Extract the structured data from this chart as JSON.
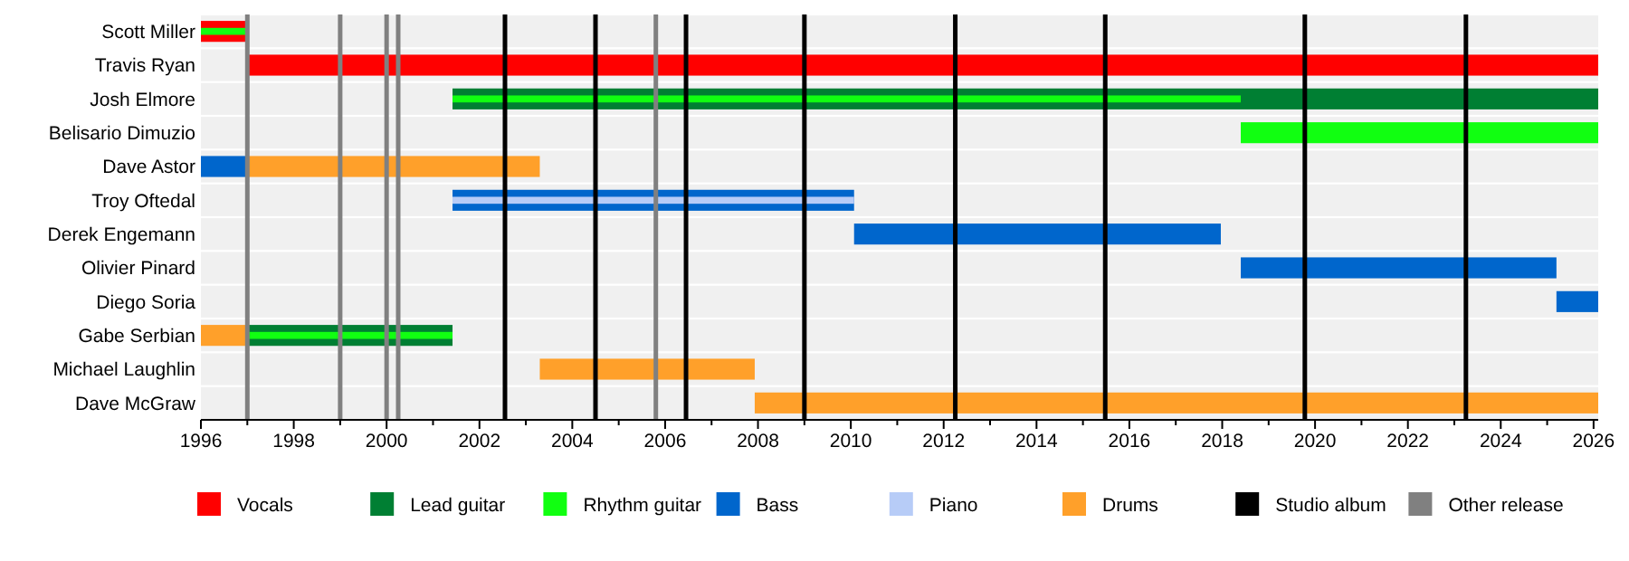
{
  "chart_data": {
    "type": "bar",
    "orientation": "horizontal",
    "categories": [
      "Scott Miller",
      "Travis Ryan",
      "Josh Elmore",
      "Belisario Dimuzio",
      "Dave Astor",
      "Troy Oftedal",
      "Derek Engemann",
      "Olivier Pinard",
      "Diego Soria",
      "Gabe Serbian",
      "Michael Laughlin",
      "Dave McGraw"
    ],
    "series": [
      {
        "name": "Vocals",
        "color": "#ff0000",
        "base": [
          1996,
          1997,
          null,
          null,
          null,
          null,
          null,
          null,
          null,
          null,
          null,
          null
        ],
        "values": [
          1,
          29.1,
          null,
          null,
          null,
          null,
          null,
          null,
          null,
          null,
          null,
          null
        ]
      },
      {
        "name": "Lead guitar",
        "color": "#007f33",
        "base": [
          null,
          null,
          2001.42,
          null,
          null,
          null,
          null,
          null,
          null,
          1997,
          null,
          null
        ],
        "values": [
          null,
          null,
          24.68,
          null,
          null,
          null,
          null,
          null,
          null,
          4.42,
          null,
          null
        ]
      },
      {
        "name": "Rhythm guitar",
        "color": "#11ff11",
        "base": [
          1996,
          null,
          2001.42,
          2018.4,
          null,
          null,
          null,
          null,
          null,
          1997,
          null,
          null
        ],
        "values": [
          1,
          null,
          16.98,
          7.7,
          null,
          null,
          null,
          null,
          null,
          4.42,
          null,
          null
        ]
      },
      {
        "name": "Bass",
        "color": "#0066cc",
        "base": [
          null,
          null,
          null,
          null,
          1996,
          2001.42,
          2010.07,
          2018.4,
          2025.2,
          null,
          null,
          null
        ],
        "values": [
          null,
          null,
          null,
          null,
          1,
          8.65,
          7.9,
          6.8,
          0.9,
          null,
          null,
          null
        ]
      },
      {
        "name": "Piano",
        "color": "#b7ccf7",
        "base": [
          null,
          null,
          null,
          null,
          null,
          2001.42,
          null,
          null,
          null,
          null,
          null,
          null
        ],
        "values": [
          null,
          null,
          null,
          null,
          null,
          8.65,
          null,
          null,
          null,
          null,
          null,
          null
        ]
      },
      {
        "name": "Drums",
        "color": "#ffa02a",
        "base": [
          null,
          null,
          null,
          null,
          1997,
          null,
          null,
          null,
          null,
          1996,
          2003.3,
          2007.93
        ],
        "values": [
          null,
          null,
          null,
          null,
          6.3,
          null,
          null,
          null,
          null,
          1,
          4.63,
          18.17
        ]
      }
    ],
    "ref_lines": [
      {
        "axis": "x",
        "value": 1997,
        "label": "Other release",
        "color": "#808080"
      },
      {
        "axis": "x",
        "value": 1999,
        "color": "#808080"
      },
      {
        "axis": "x",
        "value": 2000,
        "color": "#808080"
      },
      {
        "axis": "x",
        "value": 2000.25,
        "color": "#808080"
      },
      {
        "axis": "x",
        "value": 2005.8,
        "color": "#808080"
      },
      {
        "axis": "x",
        "value": 2002.55,
        "label": "Studio album",
        "color": "#000000"
      },
      {
        "axis": "x",
        "value": 2004.5,
        "color": "#000000"
      },
      {
        "axis": "x",
        "value": 2006.45,
        "color": "#000000"
      },
      {
        "axis": "x",
        "value": 2009,
        "color": "#000000"
      },
      {
        "axis": "x",
        "value": 2012.25,
        "color": "#000000"
      },
      {
        "axis": "x",
        "value": 2015.48,
        "color": "#000000"
      },
      {
        "axis": "x",
        "value": 2019.78,
        "color": "#000000"
      },
      {
        "axis": "x",
        "value": 2023.25,
        "color": "#000000"
      }
    ],
    "xlim": [
      1996,
      2026.1
    ],
    "xticks": [
      1996,
      {
        "value": 1997,
        "label": null
      },
      1998,
      {
        "value": 1999,
        "label": null
      },
      2000,
      {
        "value": 2001,
        "label": null
      },
      2002,
      {
        "value": 2003,
        "label": null
      },
      2004,
      {
        "value": 2005,
        "label": null
      },
      2006,
      {
        "value": 2007,
        "label": null
      },
      2008,
      {
        "value": 2009,
        "label": null
      },
      2010,
      {
        "value": 2011,
        "label": null
      },
      2012,
      {
        "value": 2013,
        "label": null
      },
      2014,
      {
        "value": 2015,
        "label": null
      },
      2016,
      {
        "value": 2017,
        "label": null
      },
      2018,
      {
        "value": 2019,
        "label": null
      },
      2020,
      {
        "value": 2021,
        "label": null
      },
      2022,
      {
        "value": 2023,
        "label": null
      },
      2024,
      {
        "value": 2025,
        "label": null
      },
      2026
    ],
    "grid": false,
    "legend": "bottom"
  }
}
